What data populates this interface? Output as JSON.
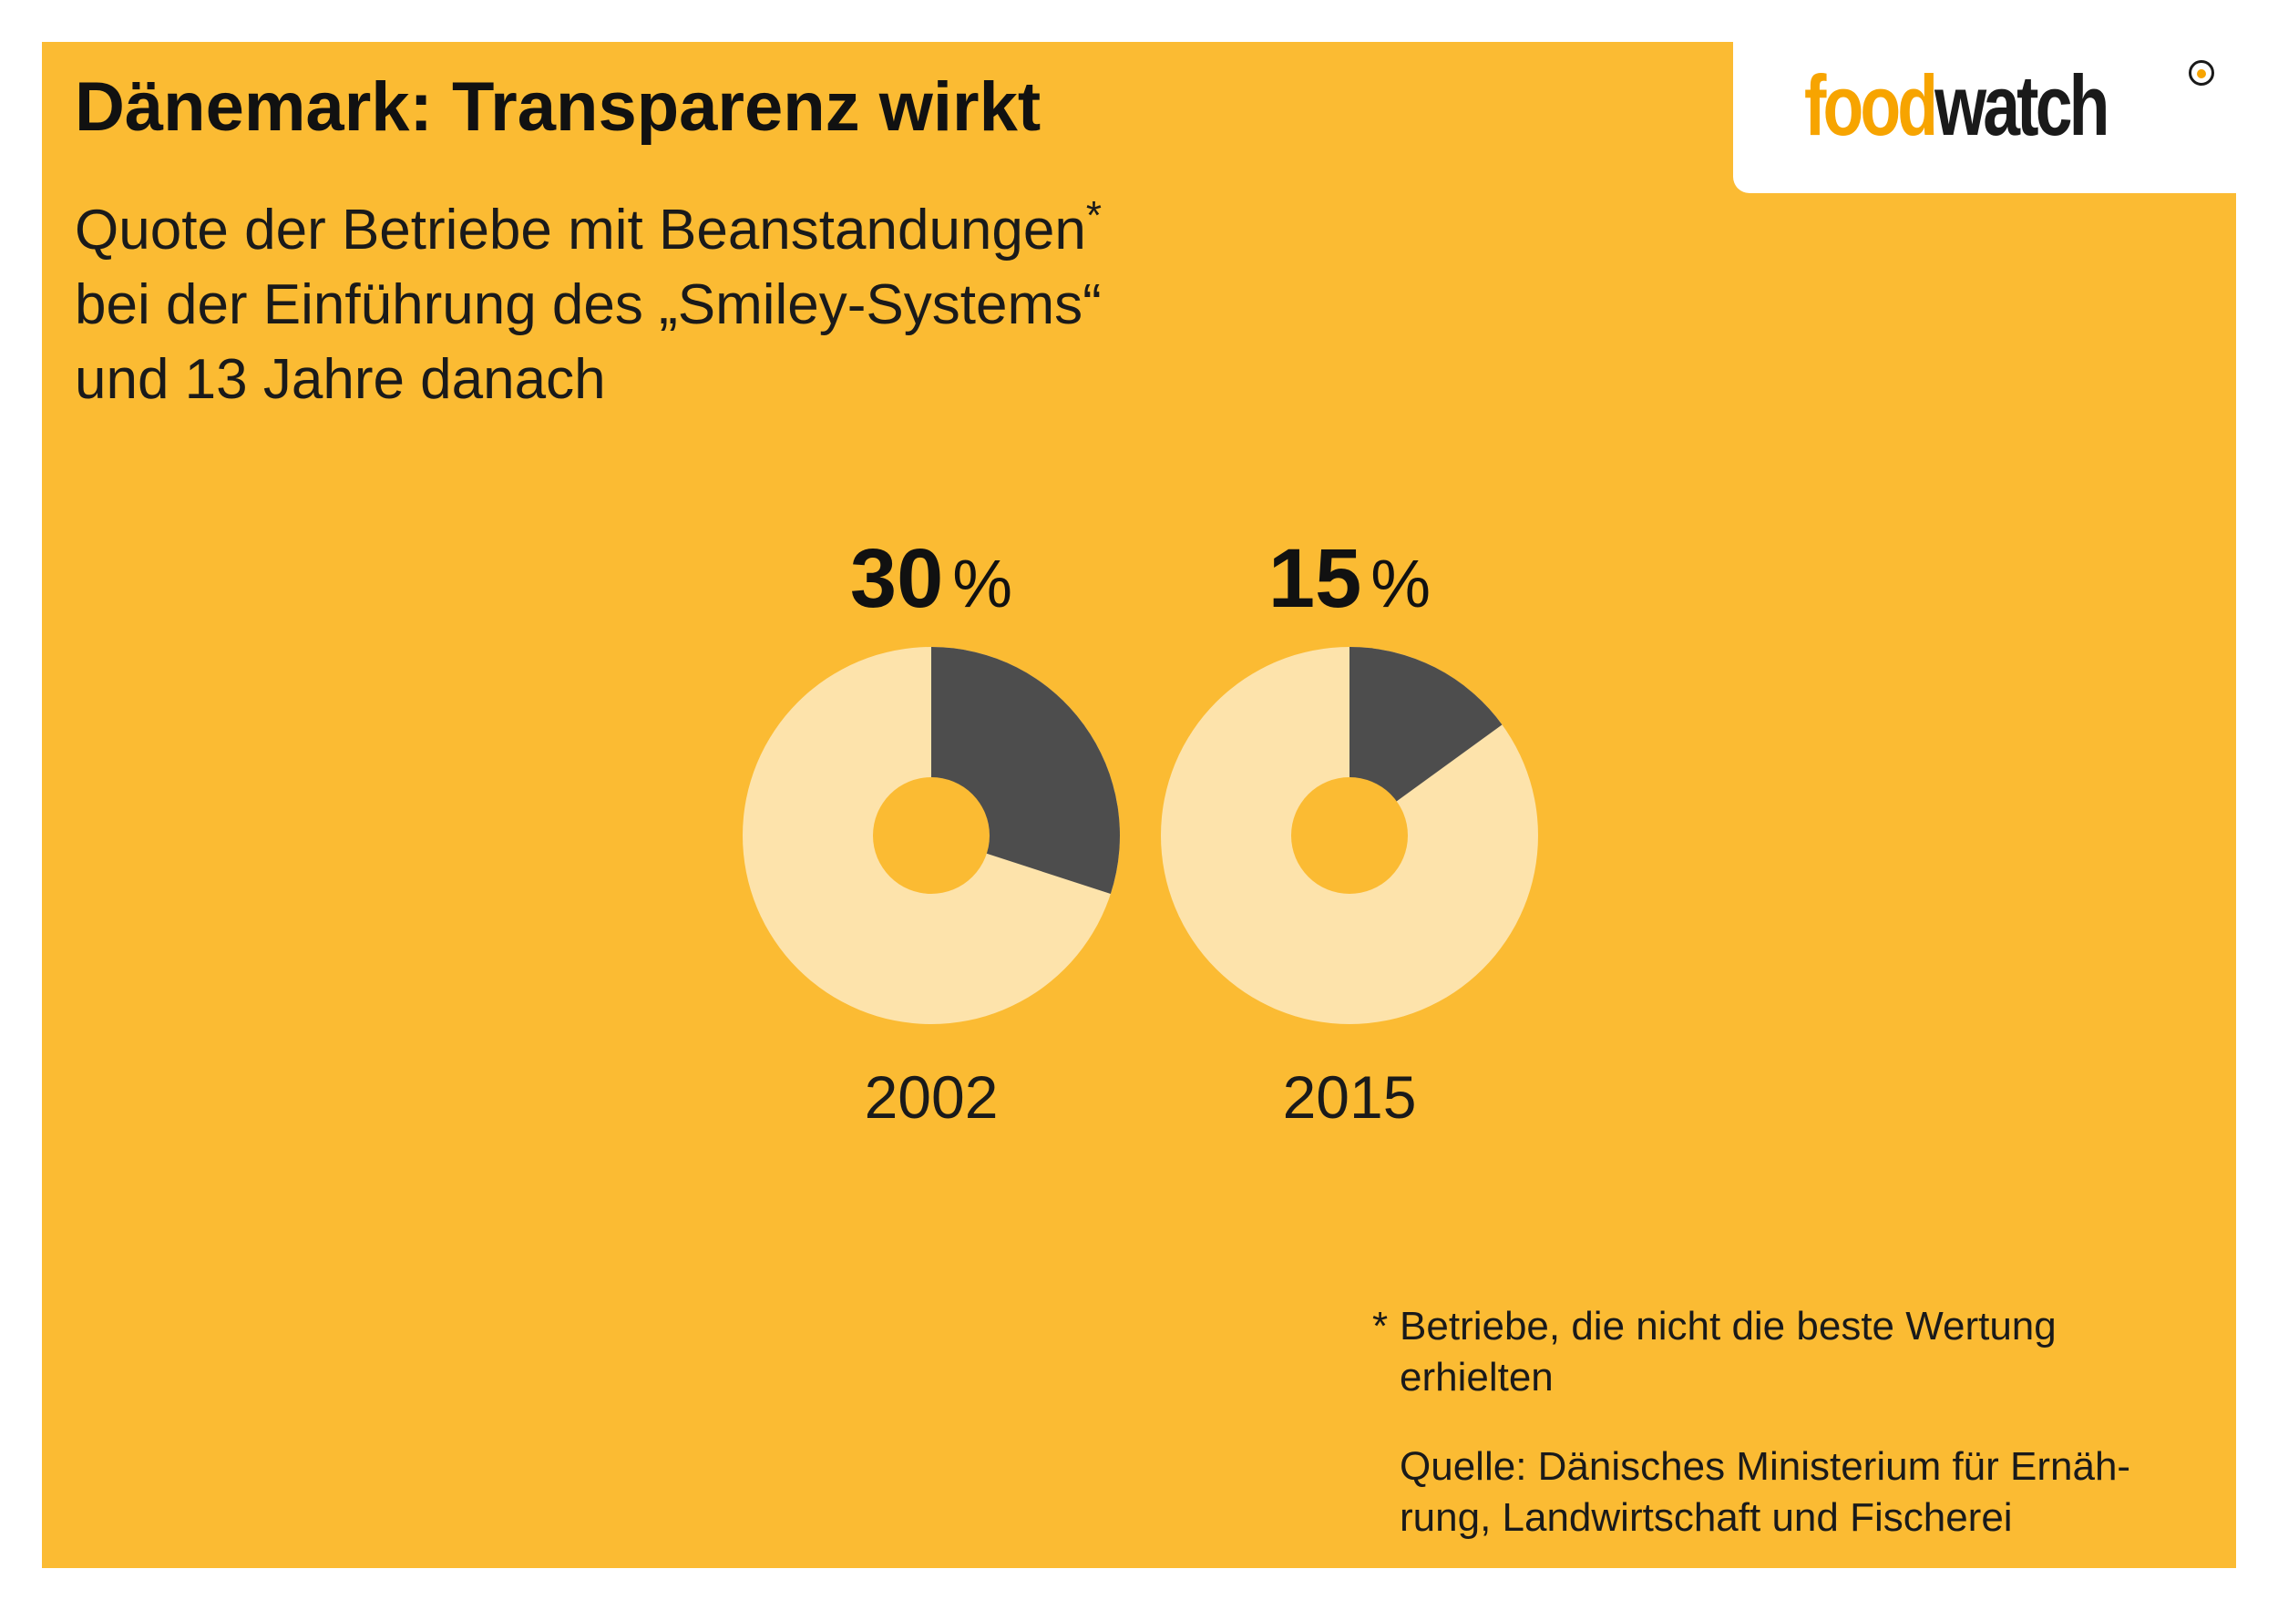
{
  "header": {
    "title": "Dänemark: Transparenz wirkt",
    "subtitle_lines": [
      "Quote der Betriebe mit Beanstandungen",
      "bei der Einführung des „Smiley-Systems“",
      "und 13 Jahre danach"
    ],
    "subtitle_marker": "*"
  },
  "logo": {
    "part1": "food",
    "part2": "watch"
  },
  "colors": {
    "background": "#fbbb33",
    "highlight": "#4d4d4d",
    "remainder": "#fde3ab",
    "logo_accent": "#f7a400"
  },
  "chart_data": {
    "type": "pie",
    "unit": "%",
    "categories": [
      "2002",
      "2015"
    ],
    "values": [
      30,
      15
    ],
    "value_labels": [
      "30",
      "15"
    ]
  },
  "footnote": {
    "marker": "*",
    "lines": [
      "Betriebe, die nicht die beste Wertung",
      "erhielten"
    ]
  },
  "source": {
    "lines": [
      "Quelle: Dänisches Ministerium für Ernäh-",
      "rung, Landwirtschaft und Fischerei"
    ]
  }
}
